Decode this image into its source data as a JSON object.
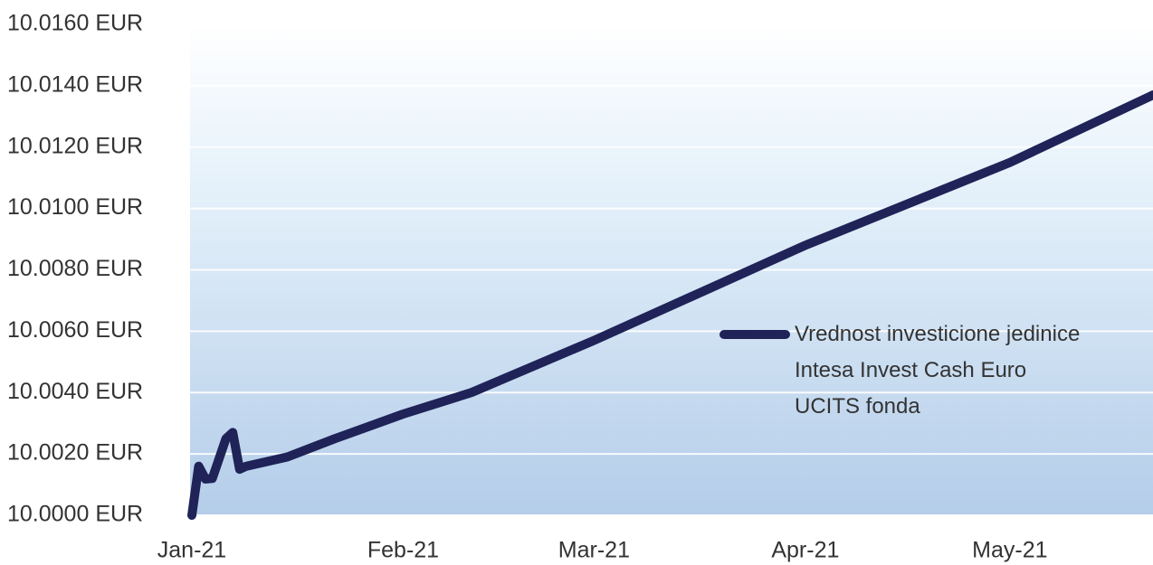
{
  "chart_data": {
    "type": "line",
    "x": [
      0,
      1,
      2,
      3,
      5,
      6,
      7,
      8,
      14,
      21,
      31,
      41,
      59,
      90,
      120,
      141
    ],
    "series": [
      {
        "name": "Vrednost investicione jedinice Intesa Invest Cash Euro UCITS fonda",
        "color": "#1f2358",
        "values": [
          10.0,
          10.0016,
          10.00118,
          10.0012,
          10.0025,
          10.0027,
          10.0015,
          10.0016,
          10.0019,
          10.0025,
          10.0033,
          10.004,
          10.0057,
          10.0088,
          10.0115,
          10.0137
        ]
      }
    ],
    "xlim": [
      0,
      141
    ],
    "xticks": [
      {
        "value": 0,
        "label": "Jan-21"
      },
      {
        "value": 31,
        "label": "Feb-21"
      },
      {
        "value": 59,
        "label": "Mar-21"
      },
      {
        "value": 90,
        "label": "Apr-21"
      },
      {
        "value": 120,
        "label": "May-21"
      }
    ],
    "ylim": [
      10.0,
      10.016
    ],
    "yticks": [
      {
        "value": 10.0,
        "label": "10.0000 EUR"
      },
      {
        "value": 10.002,
        "label": "10.0020 EUR"
      },
      {
        "value": 10.004,
        "label": "10.0040 EUR"
      },
      {
        "value": 10.006,
        "label": "10.0060 EUR"
      },
      {
        "value": 10.008,
        "label": "10.0080 EUR"
      },
      {
        "value": 10.01,
        "label": "10.0100 EUR"
      },
      {
        "value": 10.012,
        "label": "10.0120 EUR"
      },
      {
        "value": 10.014,
        "label": "10.0140 EUR"
      },
      {
        "value": 10.016,
        "label": "10.0160 EUR"
      }
    ],
    "grid": true
  }
}
